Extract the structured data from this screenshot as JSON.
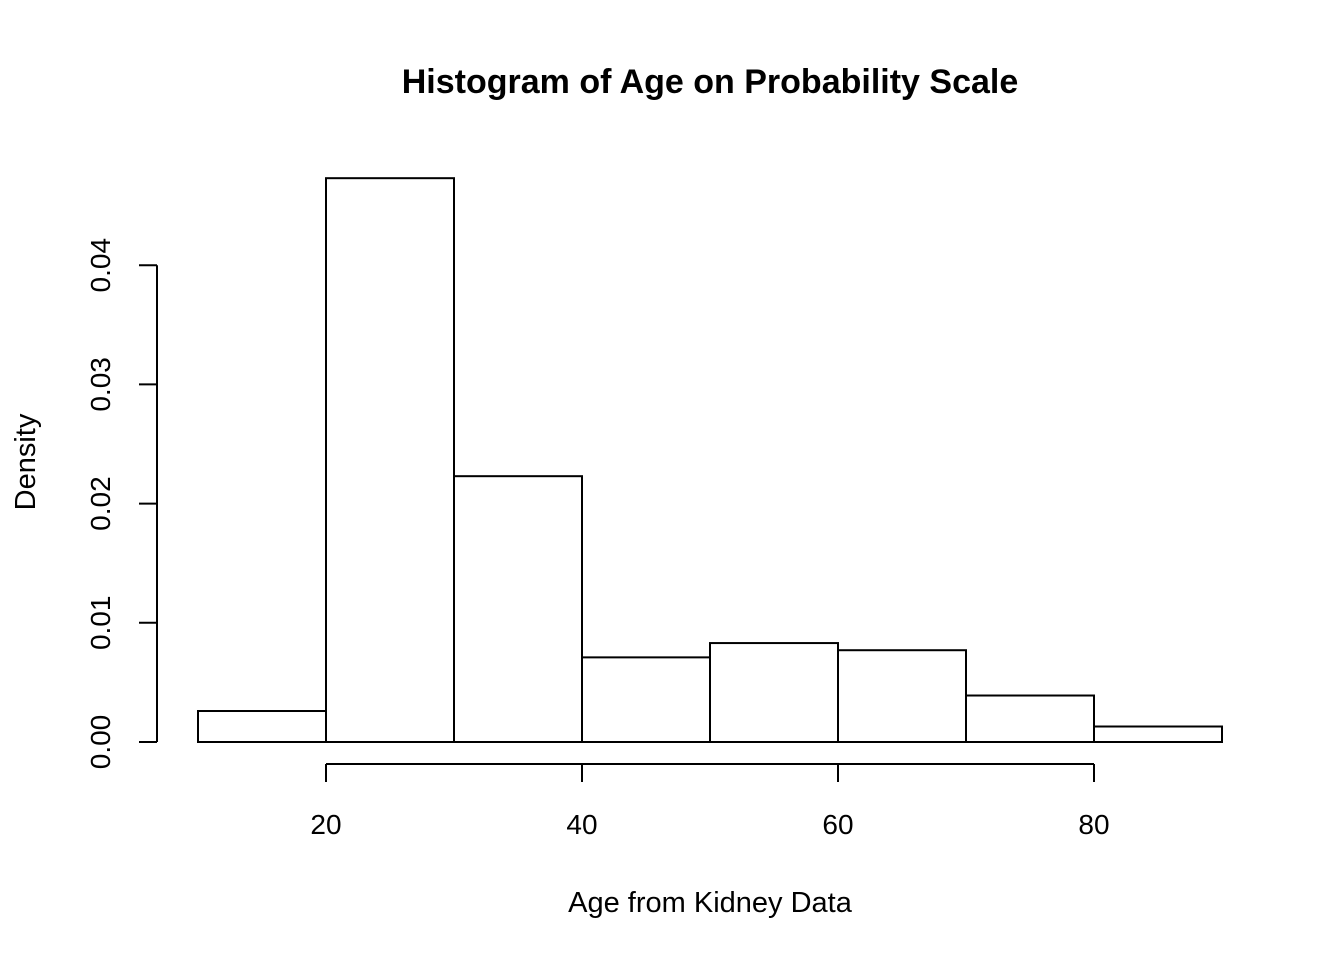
{
  "chart_data": {
    "type": "bar",
    "title": "Histogram of Age on Probability Scale",
    "xlabel": "Age from Kidney Data",
    "ylabel": "Density",
    "bin_edges": [
      10,
      20,
      30,
      40,
      50,
      60,
      70,
      80,
      90
    ],
    "values": [
      0.0026,
      0.0473,
      0.0223,
      0.0071,
      0.0083,
      0.0077,
      0.0039,
      0.0013
    ],
    "x_ticks": [
      "20",
      "40",
      "60",
      "80"
    ],
    "x_tick_values": [
      20,
      40,
      60,
      80
    ],
    "y_ticks": [
      "0.00",
      "0.01",
      "0.02",
      "0.03",
      "0.04"
    ],
    "y_tick_values": [
      0,
      0.01,
      0.02,
      0.03,
      0.04
    ],
    "xlim": [
      10,
      90
    ],
    "ylim": [
      0,
      0.0473
    ],
    "grid": false,
    "bar_fill": "#ffffff",
    "bar_stroke": "#000000"
  }
}
